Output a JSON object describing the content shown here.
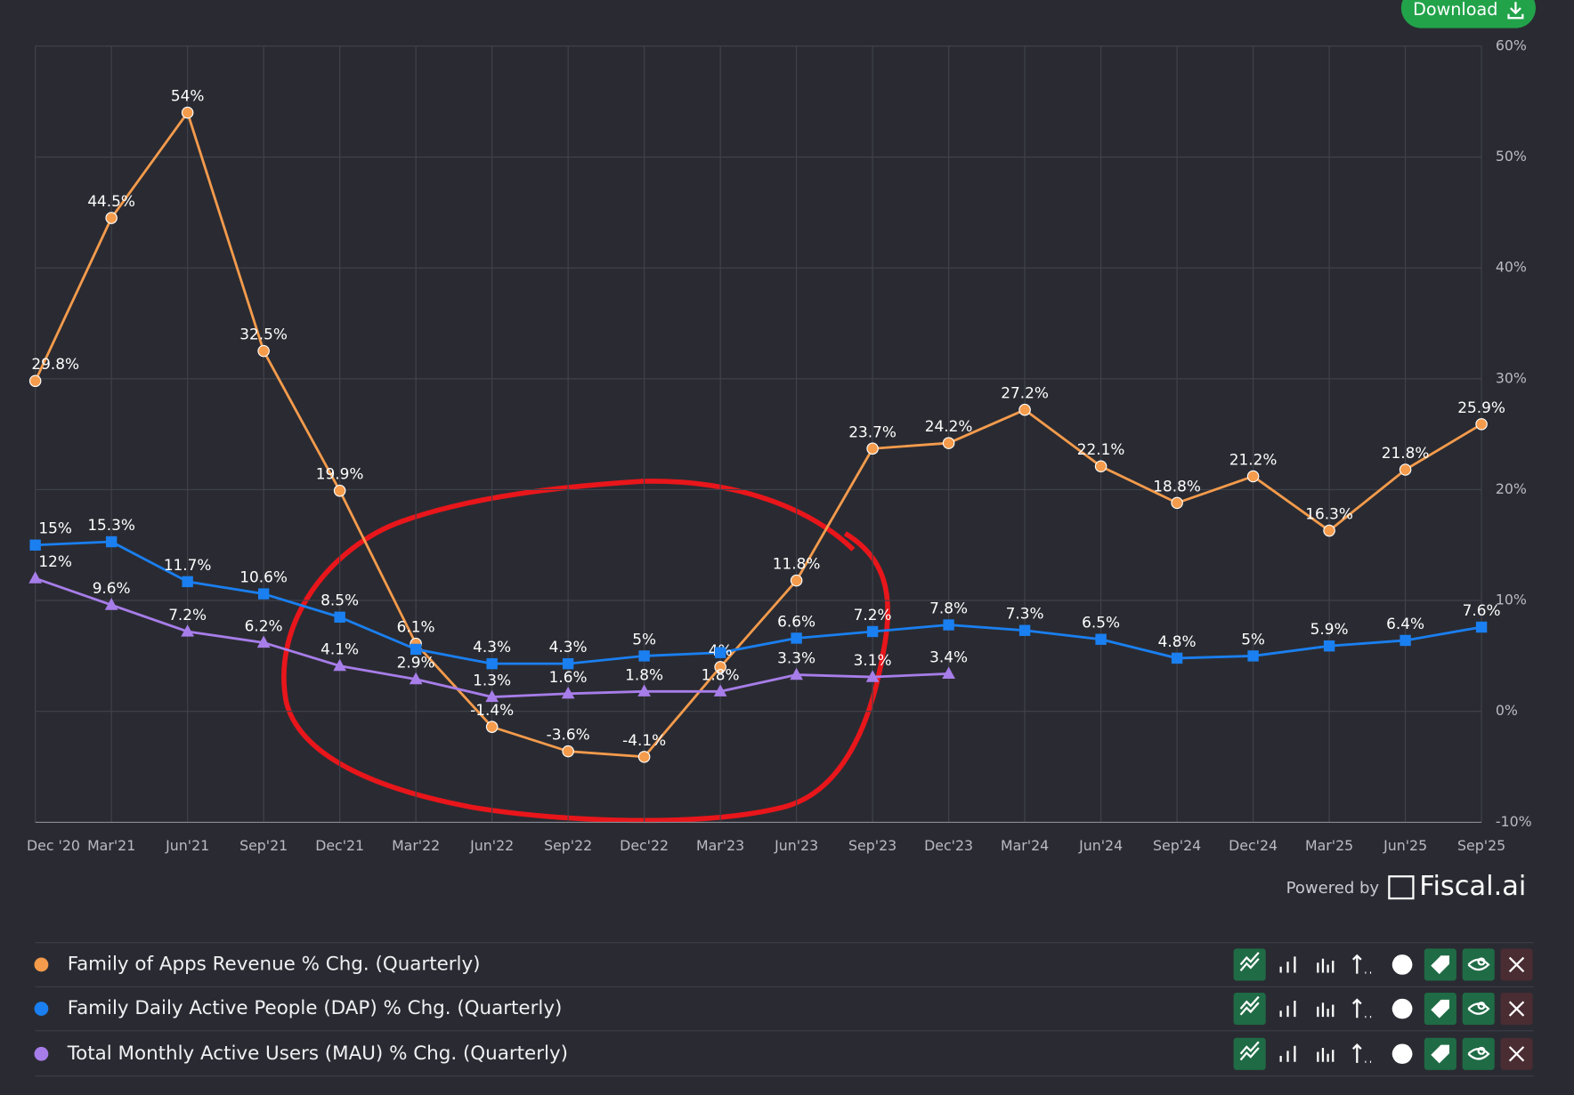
{
  "chart_data": {
    "type": "line",
    "button": "Download",
    "credit": "Powered by",
    "brand": "Fiscal.ai",
    "categories": [
      "Dec '20",
      "Mar'21",
      "Jun'21",
      "Sep'21",
      "Dec'21",
      "Mar'22",
      "Jun'22",
      "Sep'22",
      "Dec'22",
      "Mar'23",
      "Jun'23",
      "Sep'23",
      "Dec'23",
      "Mar'24",
      "Jun'24",
      "Sep'24",
      "Dec'24",
      "Mar'25",
      "Jun'25",
      "Sep'25"
    ],
    "series": [
      {
        "name": "Family of Apps Revenue % Chg. (Quarterly)",
        "color": "#f59b4c",
        "marker": "circle",
        "values": [
          29.8,
          44.5,
          54,
          32.5,
          19.9,
          6.1,
          -1.4,
          -3.6,
          -4.1,
          4,
          11.8,
          23.7,
          24.2,
          27.2,
          22.1,
          18.8,
          21.2,
          16.3,
          21.8,
          25.9
        ],
        "value_labels": [
          "29.8%",
          "44.5%",
          "54%",
          "32.5%",
          "19.9%",
          "6.1%",
          "-1.4%",
          "-3.6%",
          "-4.1%",
          "4%",
          "11.8%",
          "23.7%",
          "24.2%",
          "27.2%",
          "22.1%",
          "18.8%",
          "21.2%",
          "16.3%",
          "21.8%",
          "25.9%"
        ]
      },
      {
        "name": "Family Daily Active People (DAP) % Chg. (Quarterly)",
        "color": "#1a7ff0",
        "marker": "square",
        "values": [
          15,
          15.3,
          11.7,
          10.6,
          8.5,
          5.6,
          4.3,
          4.3,
          5,
          5.3,
          6.6,
          7.2,
          7.8,
          7.3,
          6.5,
          4.8,
          5,
          5.9,
          6.4,
          7.6
        ],
        "value_labels": [
          "15%",
          "15.3%",
          "11.7%",
          "10.6%",
          "8.5%",
          null,
          "4.3%",
          "4.3%",
          "5%",
          null,
          "6.6%",
          "7.2%",
          "7.8%",
          "7.3%",
          "6.5%",
          "4.8%",
          "5%",
          "5.9%",
          "6.4%",
          "7.6%"
        ]
      },
      {
        "name": "Total Monthly Active Users (MAU) % Chg. (Quarterly)",
        "color": "#a77de9",
        "marker": "triangle",
        "values": [
          12,
          9.6,
          7.2,
          6.2,
          4.1,
          2.9,
          1.3,
          1.6,
          1.8,
          1.8,
          3.3,
          3.1,
          3.4,
          null,
          null,
          null,
          null,
          null,
          null,
          null
        ],
        "value_labels": [
          "12%",
          "9.6%",
          "7.2%",
          "6.2%",
          "4.1%",
          "2.9%",
          "1.3%",
          "1.6%",
          "1.8%",
          "1.8%",
          "3.3%",
          "3.1%",
          "3.4%",
          null,
          null,
          null,
          null,
          null,
          null,
          null
        ]
      }
    ],
    "ylim": [
      -10,
      60
    ],
    "yticks": [
      {
        "value": -10,
        "label": "-10%"
      },
      {
        "value": 0,
        "label": "0%"
      },
      {
        "value": 10,
        "label": "10%"
      },
      {
        "value": 20,
        "label": "20%"
      },
      {
        "value": 30,
        "label": "30%"
      },
      {
        "value": 40,
        "label": "40%"
      },
      {
        "value": 50,
        "label": "50%"
      },
      {
        "value": 60,
        "label": "60%"
      }
    ],
    "grid": true,
    "yaxis_side": "right"
  }
}
